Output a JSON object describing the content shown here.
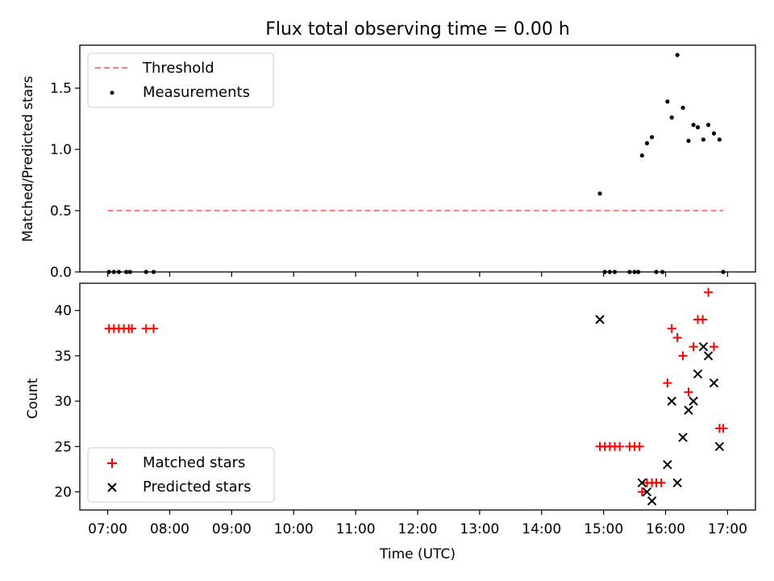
{
  "figure": {
    "title": "Flux total observing time = 0.00 h"
  },
  "x_axis": {
    "label": "Time (UTC)",
    "range_hours": [
      6.55,
      17.45
    ],
    "ticks": [
      {
        "h": 7,
        "label": "07:00"
      },
      {
        "h": 8,
        "label": "08:00"
      },
      {
        "h": 9,
        "label": "09:00"
      },
      {
        "h": 10,
        "label": "10:00"
      },
      {
        "h": 11,
        "label": "11:00"
      },
      {
        "h": 12,
        "label": "12:00"
      },
      {
        "h": 13,
        "label": "13:00"
      },
      {
        "h": 14,
        "label": "14:00"
      },
      {
        "h": 15,
        "label": "15:00"
      },
      {
        "h": 16,
        "label": "16:00"
      },
      {
        "h": 17,
        "label": "17:00"
      }
    ]
  },
  "chart_data": [
    {
      "type": "scatter",
      "title": "Flux total observing time = 0.00 h",
      "xlabel": "",
      "ylabel": "Matched/Predicted stars",
      "ylim": [
        0,
        1.85
      ],
      "yticks": [
        {
          "v": 0.0,
          "label": "0.0"
        },
        {
          "v": 0.5,
          "label": "0.5"
        },
        {
          "v": 1.0,
          "label": "1.0"
        },
        {
          "v": 1.5,
          "label": "1.5"
        }
      ],
      "legend": {
        "position": "top-left",
        "entries": [
          "Threshold",
          "Measurements"
        ]
      },
      "threshold": {
        "name": "Threshold",
        "value": 0.5,
        "x_range": [
          7.0,
          16.93
        ],
        "color": "#ff7f7f"
      },
      "series": [
        {
          "name": "Measurements",
          "color": "#000000",
          "points": [
            [
              7.02,
              0
            ],
            [
              7.1,
              0
            ],
            [
              7.18,
              0
            ],
            [
              7.3,
              0
            ],
            [
              7.36,
              0
            ],
            [
              7.62,
              0
            ],
            [
              7.74,
              0
            ],
            [
              14.94,
              0.64
            ],
            [
              15.02,
              0
            ],
            [
              15.1,
              0
            ],
            [
              15.18,
              0
            ],
            [
              15.42,
              0
            ],
            [
              15.5,
              0
            ],
            [
              15.56,
              0
            ],
            [
              15.62,
              0.95
            ],
            [
              15.7,
              1.05
            ],
            [
              15.78,
              1.1
            ],
            [
              15.85,
              0
            ],
            [
              15.95,
              0
            ],
            [
              16.03,
              1.39
            ],
            [
              16.1,
              1.26
            ],
            [
              16.19,
              1.77
            ],
            [
              16.28,
              1.34
            ],
            [
              16.37,
              1.07
            ],
            [
              16.45,
              1.2
            ],
            [
              16.52,
              1.18
            ],
            [
              16.61,
              1.08
            ],
            [
              16.69,
              1.2
            ],
            [
              16.78,
              1.13
            ],
            [
              16.87,
              1.08
            ],
            [
              16.93,
              0
            ]
          ]
        }
      ]
    },
    {
      "type": "scatter",
      "title": "",
      "xlabel": "Time (UTC)",
      "ylabel": "Count",
      "ylim": [
        18,
        43
      ],
      "yticks": [
        {
          "v": 20,
          "label": "20"
        },
        {
          "v": 25,
          "label": "25"
        },
        {
          "v": 30,
          "label": "30"
        },
        {
          "v": 35,
          "label": "35"
        },
        {
          "v": 40,
          "label": "40"
        }
      ],
      "legend": {
        "position": "bottom-left",
        "entries": [
          "Matched stars",
          "Predicted stars"
        ]
      },
      "series": [
        {
          "name": "Matched stars",
          "marker": "plus",
          "color": "#ff0000",
          "points": [
            [
              7.02,
              38
            ],
            [
              7.1,
              38
            ],
            [
              7.18,
              38
            ],
            [
              7.26,
              38
            ],
            [
              7.34,
              38
            ],
            [
              7.39,
              38
            ],
            [
              7.62,
              38
            ],
            [
              7.74,
              38
            ],
            [
              14.94,
              25
            ],
            [
              15.02,
              25
            ],
            [
              15.1,
              25
            ],
            [
              15.18,
              25
            ],
            [
              15.26,
              25
            ],
            [
              15.42,
              25
            ],
            [
              15.5,
              25
            ],
            [
              15.58,
              25
            ],
            [
              15.62,
              20
            ],
            [
              15.7,
              21
            ],
            [
              15.78,
              21
            ],
            [
              15.85,
              21
            ],
            [
              15.93,
              21
            ],
            [
              16.03,
              32
            ],
            [
              16.1,
              38
            ],
            [
              16.19,
              37
            ],
            [
              16.28,
              35
            ],
            [
              16.37,
              31
            ],
            [
              16.45,
              36
            ],
            [
              16.52,
              39
            ],
            [
              16.6,
              39
            ],
            [
              16.69,
              42
            ],
            [
              16.78,
              36
            ],
            [
              16.87,
              27
            ],
            [
              16.93,
              27
            ]
          ]
        },
        {
          "name": "Predicted stars",
          "marker": "x",
          "color": "#000000",
          "points": [
            [
              14.94,
              39
            ],
            [
              15.62,
              21
            ],
            [
              15.7,
              20
            ],
            [
              15.78,
              19
            ],
            [
              16.03,
              23
            ],
            [
              16.1,
              30
            ],
            [
              16.19,
              21
            ],
            [
              16.28,
              26
            ],
            [
              16.37,
              29
            ],
            [
              16.45,
              30
            ],
            [
              16.52,
              33
            ],
            [
              16.61,
              36
            ],
            [
              16.69,
              35
            ],
            [
              16.78,
              32
            ],
            [
              16.87,
              25
            ]
          ]
        }
      ]
    }
  ]
}
